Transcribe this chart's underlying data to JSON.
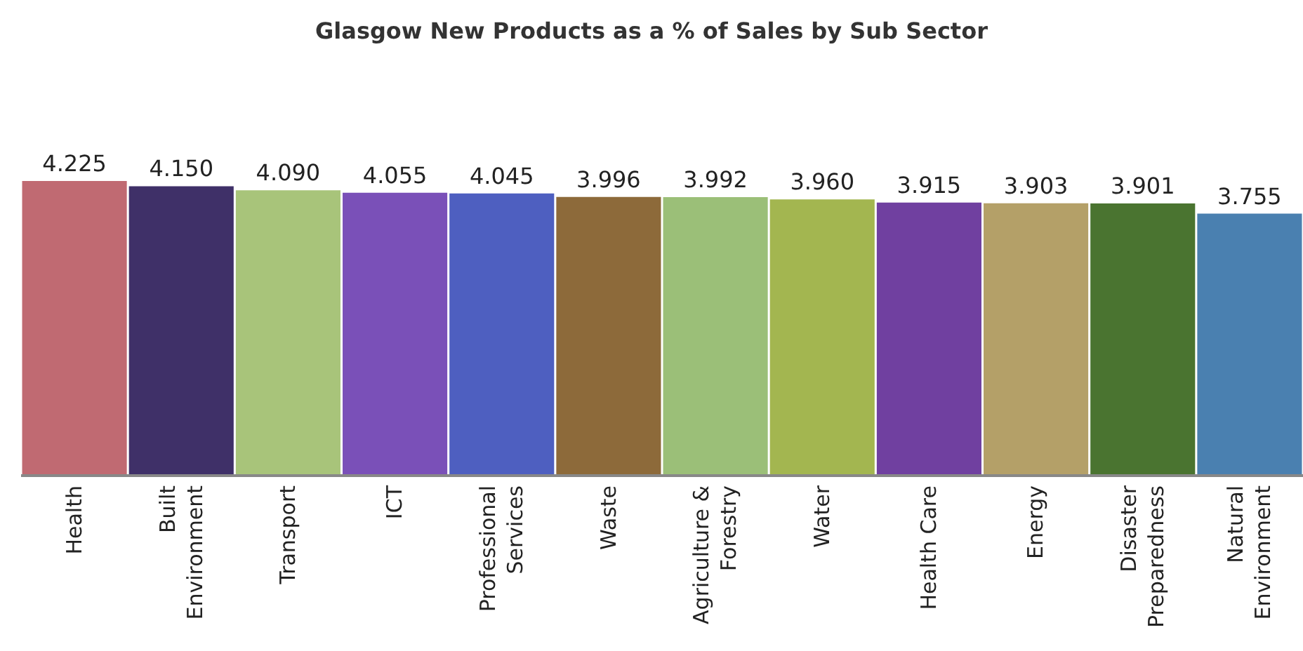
{
  "chart_data": {
    "type": "bar",
    "title": "Glasgow New Products as a % of Sales by Sub Sector",
    "categories": [
      "Health",
      "Built Environment",
      "Transport",
      "ICT",
      "Professional Services",
      "Waste",
      "Agriculture & Forestry",
      "Water",
      "Health Care",
      "Energy",
      "Disaster Preparedness",
      "Natural Environment"
    ],
    "values": [
      4.225,
      4.15,
      4.09,
      4.055,
      4.045,
      3.996,
      3.992,
      3.96,
      3.915,
      3.903,
      3.901,
      3.755
    ],
    "value_labels": [
      "4.225",
      "4.150",
      "4.090",
      "4.055",
      "4.045",
      "3.996",
      "3.992",
      "3.960",
      "3.915",
      "3.903",
      "3.901",
      "3.755"
    ],
    "colors": [
      "#c06a72",
      "#3f3068",
      "#a8c47a",
      "#7a50b8",
      "#4e5fc0",
      "#8d6a3a",
      "#9bbf78",
      "#a3b650",
      "#7040a0",
      "#b4a068",
      "#4a7430",
      "#4a80b0"
    ],
    "legend": false
  }
}
